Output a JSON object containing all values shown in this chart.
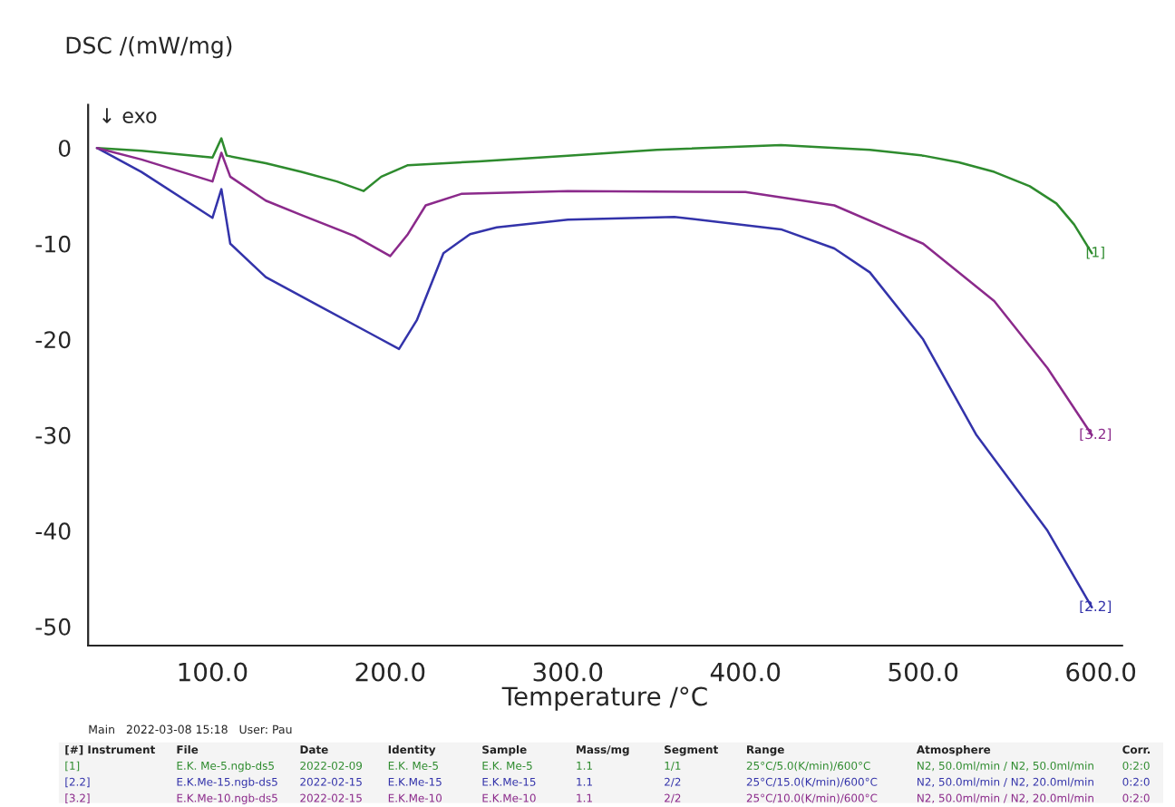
{
  "chart_data": {
    "type": "line",
    "ylabel": "DSC /(mW/mg)",
    "xlabel": "Temperature /°C",
    "xlim": [
      30,
      612
    ],
    "ylim": [
      -52,
      4.5
    ],
    "xticks": [
      {
        "value": 100,
        "label": "100.0"
      },
      {
        "value": 200,
        "label": "200.0"
      },
      {
        "value": 300,
        "label": "300.0"
      },
      {
        "value": 400,
        "label": "400.0"
      },
      {
        "value": 500,
        "label": "500.0"
      },
      {
        "value": 600,
        "label": "600.0"
      }
    ],
    "yticks": [
      0,
      -10,
      -20,
      -30,
      -40,
      -50
    ],
    "grid": false,
    "legend": false,
    "marker": "none",
    "line_style": "solid",
    "series": [
      {
        "name": "[1]",
        "color": "#2e8b2e",
        "x": [
          35,
          60,
          100,
          105,
          108,
          130,
          150,
          170,
          185,
          195,
          210,
          250,
          300,
          350,
          420,
          470,
          500,
          520,
          540,
          560,
          575,
          585,
          595
        ],
        "values": [
          0,
          -0.3,
          -1,
          1,
          -0.8,
          -1.6,
          -2.5,
          -3.5,
          -4.5,
          -3,
          -1.8,
          -1.4,
          -0.8,
          -0.2,
          0.3,
          -0.2,
          -0.8,
          -1.5,
          -2.5,
          -4,
          -5.8,
          -8,
          -11
        ]
      },
      {
        "name": "[2.2]",
        "color": "#3333aa",
        "x": [
          35,
          60,
          100,
          105,
          110,
          130,
          160,
          190,
          205,
          215,
          230,
          245,
          260,
          300,
          360,
          420,
          450,
          470,
          500,
          530,
          570,
          595
        ],
        "values": [
          0,
          -2.5,
          -7.3,
          -4.3,
          -10,
          -13.5,
          -16.5,
          -19.5,
          -21,
          -18,
          -11,
          -9,
          -8.3,
          -7.5,
          -7.2,
          -8.5,
          -10.5,
          -13,
          -20,
          -30,
          -40,
          -48
        ]
      },
      {
        "name": "[3.2]",
        "color": "#8b2a8b",
        "x": [
          35,
          60,
          100,
          105,
          110,
          130,
          150,
          180,
          200,
          210,
          220,
          240,
          300,
          400,
          450,
          500,
          540,
          570,
          595
        ],
        "values": [
          0,
          -1.2,
          -3.5,
          -0.5,
          -3,
          -5.5,
          -7,
          -9.2,
          -11.3,
          -9,
          -6,
          -4.8,
          -4.5,
          -4.6,
          -6,
          -10,
          -16,
          -23,
          -30
        ]
      }
    ],
    "annotations": [
      "↓ exo",
      "Main   2022-03-08 15:18   User: Pau",
      "[#] Instrument\tFile\tDate\tIdentity\tSample\tMass/mg\tSegment\tRange\tAtmosphere\tCorr.",
      "[1]\tE.K. Me-5.ngb-ds5\t2022-02-09\tE.K. Me-5\tE.K. Me-5\t1.1\t1/1\t25°C/5.0(K/min)/600°C\tN2, 50.0ml/min / N2, 50.0ml/min\t0:2:0",
      "[2.2]\tE.K.Me-15.ngb-ds5\t2022-02-15\tE.K.Me-15\tE.K.Me-15\t1.1\t2/2\t25°C/15.0(K/min)/600°C\tN2, 50.0ml/min / N2, 20.0ml/min\t0:2:0",
      "[3.2]\tE.K.Me-10.ngb-ds5\t2022-02-15\tE.K.Me-10\tE.K.Me-10\t1.1\t2/2\t25°C/10.0(K/min)/600°C\tN2, 50.0ml/min / N2, 20.0ml/min\t0:2:0"
    ]
  }
}
